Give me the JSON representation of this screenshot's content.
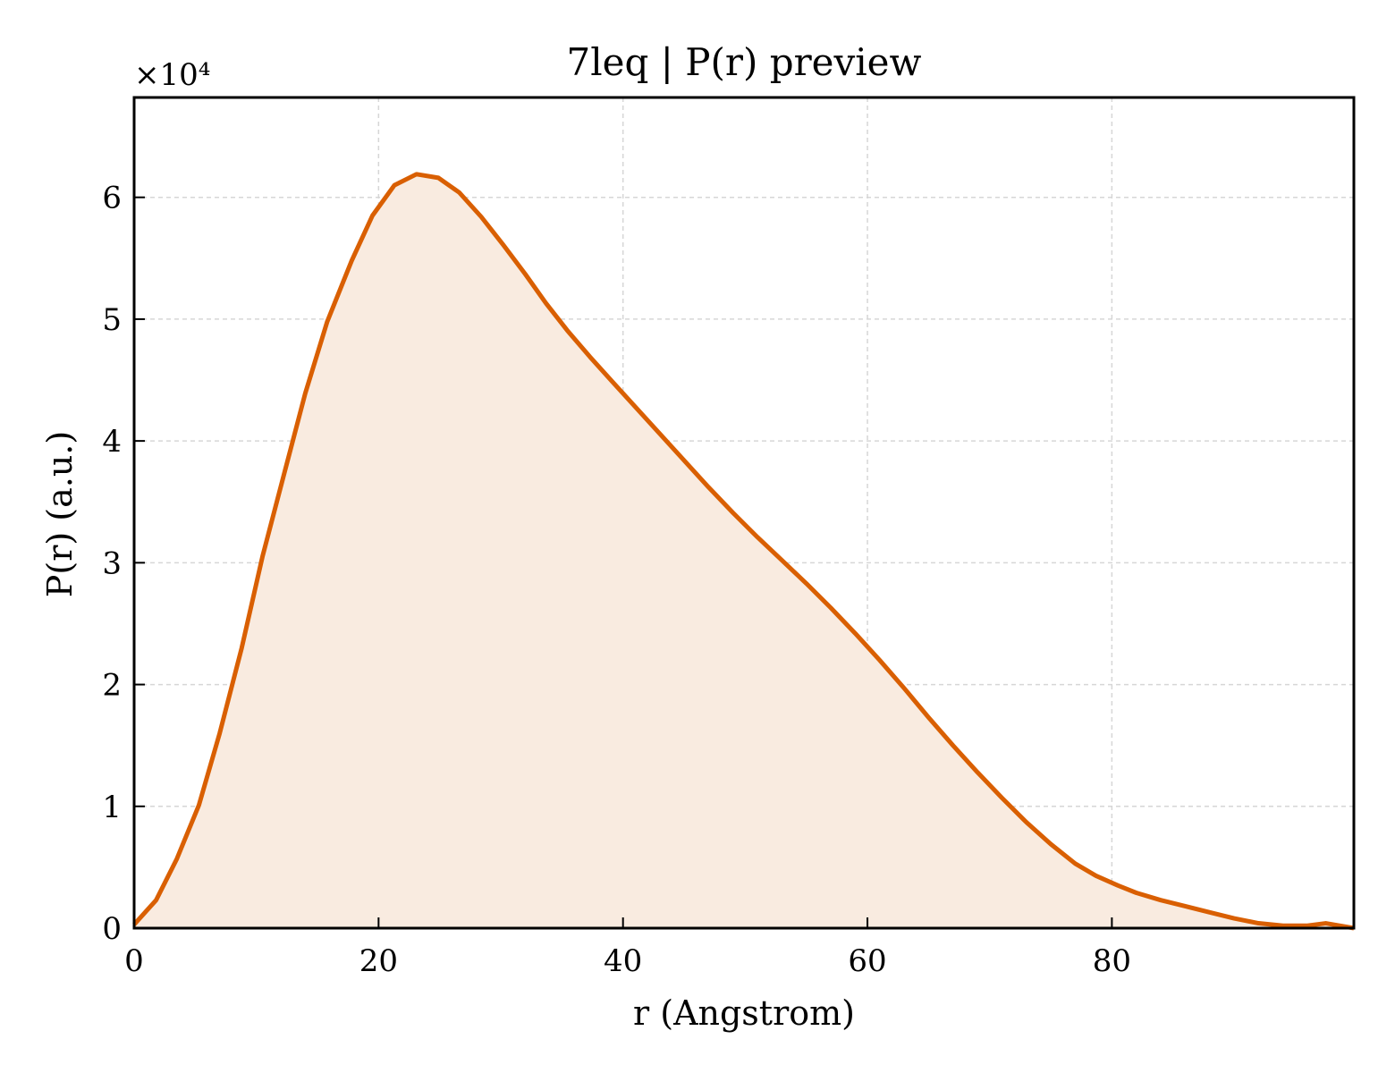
{
  "chart_data": {
    "type": "area",
    "title": "7leq | P(r) preview",
    "xlabel": "r (Angstrom)",
    "ylabel": "P(r) (a.u.)",
    "y_multiplier_label": "×10⁴",
    "xlim": [
      0,
      99.8
    ],
    "ylim": [
      0,
      6.82
    ],
    "x_ticks": [
      0,
      20,
      40,
      60,
      80
    ],
    "y_ticks": [
      0,
      1,
      2,
      3,
      4,
      5,
      6
    ],
    "grid": true,
    "line_color": "#d95f02",
    "fill_color": "#f9ebe0",
    "series": [
      {
        "x": [
          0,
          1.8,
          3.5,
          5.3,
          7.0,
          8.8,
          10.5,
          12.3,
          14.0,
          15.8,
          17.8,
          19.5,
          21.3,
          23.1,
          24.9,
          26.6,
          28.4,
          30.2,
          32.0,
          33.7,
          35.5,
          37.3,
          39.1,
          41.0,
          43.0,
          45.0,
          47.0,
          49.0,
          51.0,
          53.0,
          55.0,
          57.0,
          59.0,
          61.0,
          63.0,
          65.0,
          67.0,
          69.0,
          71.0,
          73.0,
          75.0,
          77.0,
          78.7,
          80.5,
          82.0,
          84.0,
          86.0,
          88.0,
          90.0,
          92.0,
          94.0,
          96.0,
          97.5,
          99.8
        ],
        "y": [
          0.03,
          0.23,
          0.57,
          1.01,
          1.6,
          2.3,
          3.05,
          3.74,
          4.39,
          4.98,
          5.48,
          5.85,
          6.1,
          6.19,
          6.16,
          6.04,
          5.84,
          5.61,
          5.37,
          5.13,
          4.9,
          4.69,
          4.49,
          4.28,
          4.06,
          3.84,
          3.62,
          3.41,
          3.21,
          3.02,
          2.83,
          2.63,
          2.42,
          2.2,
          1.97,
          1.73,
          1.5,
          1.28,
          1.07,
          0.87,
          0.69,
          0.53,
          0.43,
          0.35,
          0.29,
          0.23,
          0.18,
          0.13,
          0.08,
          0.04,
          0.02,
          0.02,
          0.04,
          0.0
        ]
      }
    ]
  }
}
